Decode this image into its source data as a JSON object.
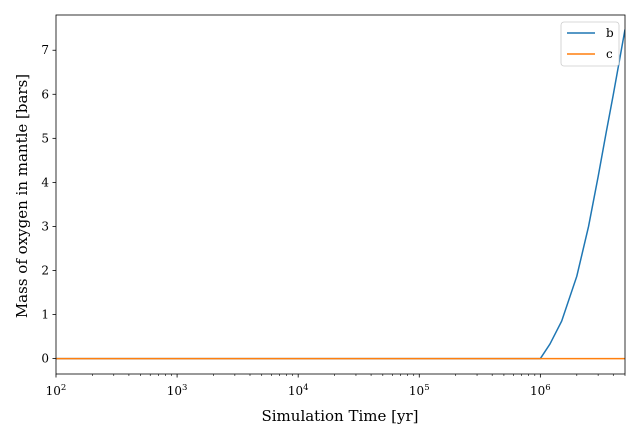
{
  "chart_data": {
    "type": "line",
    "xlabel": "Simulation Time [yr]",
    "ylabel": "Mass of oxygen in mantle [bars]",
    "xscale": "log",
    "xlim": [
      100,
      5000000
    ],
    "ylim": [
      -0.35,
      7.8
    ],
    "xticks": [
      {
        "value": 100,
        "base": "10",
        "exp": "2"
      },
      {
        "value": 1000,
        "base": "10",
        "exp": "3"
      },
      {
        "value": 10000,
        "base": "10",
        "exp": "4"
      },
      {
        "value": 100000,
        "base": "10",
        "exp": "5"
      },
      {
        "value": 1000000,
        "base": "10",
        "exp": "6"
      }
    ],
    "yticks": [
      "0",
      "1",
      "2",
      "3",
      "4",
      "5",
      "6",
      "7"
    ],
    "legend_position": "top-right",
    "grid": false,
    "series": [
      {
        "name": "b",
        "color": "#1f77b4",
        "x": [
          100,
          1000,
          10000,
          100000,
          1000000,
          1200000,
          1500000,
          2000000,
          2500000,
          3000000,
          3500000,
          4000000,
          4500000,
          5000000
        ],
        "y": [
          0,
          0,
          0,
          0,
          0,
          0.33,
          0.85,
          1.87,
          3.0,
          4.13,
          5.14,
          5.99,
          6.77,
          7.47
        ]
      },
      {
        "name": "c",
        "color": "#ff7f0e",
        "x": [
          100,
          1000,
          10000,
          100000,
          1000000,
          5000000
        ],
        "y": [
          0,
          0,
          0,
          0,
          0,
          0
        ]
      }
    ]
  }
}
